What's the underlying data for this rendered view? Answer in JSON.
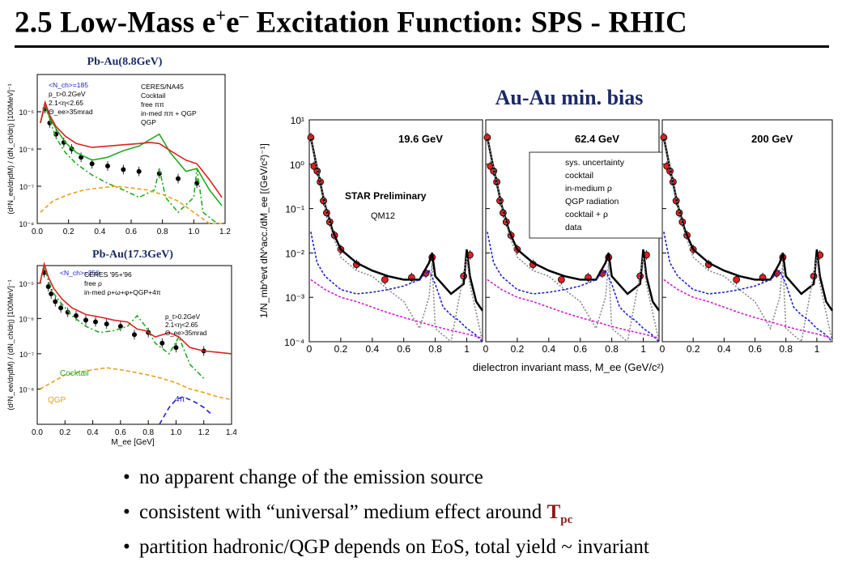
{
  "slide": {
    "title_prefix": "2.5 Low-Mass e",
    "title_sup1": "+",
    "title_mid": "e",
    "title_sup2": "–",
    "title_suffix": " Excitation Function: SPS - RHIC"
  },
  "bullets": [
    {
      "text": "no apparent change of the emission source"
    },
    {
      "text": "consistent with “universal” medium effect around ",
      "tail": "T",
      "tail_sub": "pc"
    },
    {
      "text": "partition hadronic/QGP depends on EoS, total yield ~ invariant"
    }
  ],
  "colors": {
    "title_blue": "#1a2a66",
    "tpc_red": "#8b1a1a",
    "green": "#22aa22",
    "red": "#dd2222",
    "orange": "#e8a020",
    "blue": "#2222cc",
    "magenta": "#cc22cc",
    "data_red": "#e02020"
  },
  "chart_data": [
    {
      "type": "line",
      "title": "Pb-Au(8.8GeV)",
      "xlabel": "",
      "ylabel": "(d²N_ee/dηdM) / (dN_ch/dη)  [100MeV]⁻¹",
      "xlim": [
        0.0,
        1.2
      ],
      "ylim_log10": [
        -8,
        -4
      ],
      "x_ticks": [
        "0.0",
        "0.2",
        "0.4",
        "0.6",
        "0.8",
        "1.0",
        "1.2"
      ],
      "y_ticks": [
        "10⁻⁵",
        "10⁻⁶",
        "10⁻⁷",
        "10⁻⁸"
      ],
      "annotations": [
        "<N_ch>=185",
        "p_t>0.2GeV",
        "2.1<η<2.65",
        "Θ_ee>35mrad"
      ],
      "legend": [
        "CERES/NA45",
        "Cocktail",
        "free ππ",
        "in-med ππ + QGP",
        "QGP"
      ],
      "series": [
        {
          "name": "CERES/NA45",
          "x": [
            0.05,
            0.08,
            0.12,
            0.17,
            0.22,
            0.28,
            0.35,
            0.45,
            0.55,
            0.65,
            0.78,
            0.9,
            1.02
          ],
          "y": [
            1.2e-05,
            5e-06,
            2.5e-06,
            1.5e-06,
            1e-06,
            6e-07,
            4e-07,
            3.5e-07,
            2.8e-07,
            2.5e-07,
            2.2e-07,
            1.6e-07,
            1.2e-07
          ]
        },
        {
          "name": "Cocktail",
          "x": [
            0.02,
            0.05,
            0.08,
            0.12,
            0.18,
            0.25,
            0.35,
            0.45,
            0.55,
            0.65,
            0.75,
            0.78,
            0.82,
            0.9,
            1.0,
            1.02,
            1.06,
            1.15
          ],
          "y": [
            5e-06,
            1.5e-05,
            6e-06,
            2e-06,
            8e-07,
            4e-07,
            2e-07,
            1.2e-07,
            8e-08,
            5e-08,
            8e-08,
            3e-07,
            5e-08,
            2e-08,
            5e-08,
            3e-07,
            2e-08,
            1e-08
          ]
        },
        {
          "name": "free ππ",
          "x": [
            0.02,
            0.05,
            0.08,
            0.12,
            0.18,
            0.25,
            0.35,
            0.45,
            0.55,
            0.65,
            0.72,
            0.78,
            0.85,
            0.95,
            1.02,
            1.1,
            1.18
          ],
          "y": [
            5e-06,
            1.5e-05,
            7e-06,
            3.5e-06,
            1.5e-06,
            8e-07,
            5e-07,
            6e-07,
            9e-07,
            1.2e-06,
            1.8e-06,
            2.5e-06,
            8e-07,
            2.5e-07,
            3e-07,
            8e-08,
            3e-08
          ]
        },
        {
          "name": "in-med ππ + QGP",
          "x": [
            0.02,
            0.05,
            0.08,
            0.12,
            0.18,
            0.25,
            0.35,
            0.45,
            0.55,
            0.65,
            0.72,
            0.78,
            0.85,
            0.95,
            1.02,
            1.1,
            1.18
          ],
          "y": [
            5e-06,
            1.8e-05,
            8e-06,
            4e-06,
            2.2e-06,
            1.4e-06,
            1.1e-06,
            1.2e-06,
            1.3e-06,
            1.4e-06,
            1.5e-06,
            1.4e-06,
            9e-07,
            5e-07,
            4e-07,
            1.5e-07,
            5e-08
          ]
        },
        {
          "name": "QGP",
          "x": [
            0.02,
            0.1,
            0.2,
            0.3,
            0.4,
            0.5,
            0.6,
            0.7,
            0.8,
            0.9,
            1.0,
            1.1,
            1.18
          ],
          "y": [
            2e-08,
            4e-08,
            6e-08,
            8e-08,
            9e-08,
            1e-07,
            9e-08,
            8e-08,
            6e-08,
            4e-08,
            2e-08,
            1e-08,
            1e-08
          ]
        }
      ]
    },
    {
      "type": "line",
      "title": "Pb-Au(17.3GeV)",
      "xlabel": "M_ee [GeV]",
      "ylabel": "(d²N_ee/dηdM) / (dN_ch/dη)  [100MeV]⁻¹",
      "xlim": [
        0.0,
        1.4
      ],
      "ylim_log10": [
        -9,
        -4.5
      ],
      "x_ticks": [
        "0.0",
        "0.2",
        "0.4",
        "0.6",
        "0.8",
        "1.0",
        "1.2",
        "1.4"
      ],
      "y_ticks": [
        "10⁻⁵",
        "10⁻⁶",
        "10⁻⁷",
        "10⁻⁸"
      ],
      "annotations": [
        "<N_ch>=250",
        "p_t>0.2GeV",
        "2.1<η<2.65",
        "Θ_ee>35mrad",
        "Cocktail",
        "QGP",
        "4π"
      ],
      "legend": [
        "CERES '95+'96",
        "free ρ",
        "in-med ρ+ω+φ+QGP+4π"
      ],
      "series": [
        {
          "name": "CERES '95+'96",
          "x": [
            0.05,
            0.08,
            0.1,
            0.13,
            0.17,
            0.22,
            0.28,
            0.35,
            0.42,
            0.5,
            0.6,
            0.7,
            0.8,
            0.9,
            1.0,
            1.2
          ],
          "y": [
            2e-05,
            8e-06,
            5e-06,
            3e-06,
            2e-06,
            1.5e-06,
            1.2e-06,
            9e-07,
            8e-07,
            7e-07,
            6e-07,
            3.5e-07,
            4e-07,
            2e-07,
            1.5e-07,
            1.2e-07
          ]
        },
        {
          "name": "free ρ",
          "x": [
            0.02,
            0.05,
            0.08,
            0.12,
            0.18,
            0.25,
            0.35,
            0.45,
            0.55,
            0.65,
            0.72,
            0.78,
            0.85,
            0.95,
            1.02,
            1.1,
            1.2
          ],
          "y": [
            1e-05,
            3e-05,
            1.2e-05,
            5e-06,
            2.5e-06,
            1.2e-06,
            6e-07,
            4e-07,
            4.5e-07,
            6e-07,
            1.2e-06,
            6e-07,
            2e-07,
            1e-07,
            3e-07,
            5e-08,
            2e-08
          ]
        },
        {
          "name": "in-med ρ+ω+φ+QGP+4π",
          "x": [
            0.02,
            0.05,
            0.08,
            0.12,
            0.18,
            0.25,
            0.35,
            0.45,
            0.55,
            0.65,
            0.72,
            0.78,
            0.85,
            0.95,
            1.02,
            1.1,
            1.2,
            1.3,
            1.4
          ],
          "y": [
            1e-05,
            3.5e-05,
            1.5e-05,
            7e-06,
            3.5e-06,
            2e-06,
            1.3e-06,
            1.1e-06,
            9e-07,
            8e-07,
            5e-07,
            4.5e-07,
            3e-07,
            4e-07,
            3e-07,
            1.5e-07,
            1.2e-07,
            1.1e-07,
            1e-07
          ]
        },
        {
          "name": "QGP",
          "x": [
            0.02,
            0.1,
            0.2,
            0.3,
            0.4,
            0.5,
            0.6,
            0.7,
            0.8,
            0.9,
            1.0,
            1.1,
            1.2,
            1.3,
            1.4
          ],
          "y": [
            1e-08,
            1.5e-08,
            2.5e-08,
            3e-08,
            3.5e-08,
            4e-08,
            3.5e-08,
            3e-08,
            2.5e-08,
            2e-08,
            1.5e-08,
            1e-08,
            8e-09,
            6e-09,
            5e-09
          ]
        },
        {
          "name": "4π",
          "x": [
            0.88,
            0.95,
            1.0,
            1.05,
            1.1,
            1.15,
            1.2,
            1.25
          ],
          "y": [
            1e-09,
            3e-09,
            5e-09,
            6e-09,
            5e-09,
            4e-09,
            3e-09,
            2e-09
          ]
        }
      ]
    },
    {
      "type": "line",
      "title": "Au-Au min. bias",
      "xlabel": "dielectron invariant mass, M_ee (GeV/c²)",
      "ylabel": "1/N_mb^evt dN^acc./dM_ee [(GeV/c²)⁻¹]",
      "xlim": [
        0.0,
        1.1
      ],
      "ylim_log10": [
        -4,
        1
      ],
      "x_ticks": [
        "0",
        "0.2",
        "0.4",
        "0.6",
        "0.8",
        "1"
      ],
      "y_ticks": [
        "10¹",
        "10⁰",
        "10⁻¹",
        "10⁻²",
        "10⁻³",
        "10⁻⁴"
      ],
      "panels": [
        "19.6 GeV",
        "62.4 GeV",
        "200 GeV"
      ],
      "annotations": [
        "STAR Preliminary",
        "QM12"
      ],
      "legend": [
        "sys. uncertainty",
        "cocktail",
        "in-medium ρ",
        "QGP radiation",
        "cocktail + ρ",
        "data"
      ],
      "series": [
        {
          "name": "data",
          "x": [
            0.01,
            0.03,
            0.05,
            0.07,
            0.09,
            0.11,
            0.13,
            0.16,
            0.2,
            0.3,
            0.48,
            0.65,
            0.74,
            0.78,
            0.98,
            1.02
          ],
          "y": [
            4,
            0.9,
            0.7,
            0.4,
            0.15,
            0.08,
            0.05,
            0.025,
            0.012,
            0.0055,
            0.0025,
            0.0028,
            0.0035,
            0.008,
            0.003,
            0.009
          ]
        },
        {
          "name": "cocktail + ρ",
          "x": [
            0.01,
            0.05,
            0.1,
            0.15,
            0.2,
            0.3,
            0.4,
            0.5,
            0.6,
            0.7,
            0.76,
            0.78,
            0.8,
            0.9,
            0.98,
            1.0,
            1.02,
            1.06,
            1.1
          ],
          "y": [
            4,
            0.8,
            0.12,
            0.03,
            0.012,
            0.006,
            0.004,
            0.003,
            0.0025,
            0.0025,
            0.006,
            0.01,
            0.003,
            0.0012,
            0.002,
            0.012,
            0.003,
            0.0008,
            0.0005
          ]
        },
        {
          "name": "cocktail",
          "x": [
            0.01,
            0.05,
            0.1,
            0.15,
            0.2,
            0.3,
            0.4,
            0.5,
            0.6,
            0.7,
            0.76,
            0.78,
            0.8,
            0.9,
            1.0,
            1.02,
            1.1
          ],
          "y": [
            4,
            0.8,
            0.12,
            0.025,
            0.008,
            0.004,
            0.003,
            0.0015,
            0.0008,
            0.0002,
            0.001,
            0.006,
            0.0002,
            0.0001,
            0.008,
            0.002,
            0.0001
          ]
        },
        {
          "name": "in-medium ρ",
          "x": [
            0.01,
            0.05,
            0.1,
            0.2,
            0.3,
            0.4,
            0.5,
            0.6,
            0.7,
            0.76,
            0.8,
            0.85,
            0.9,
            0.95,
            1.0,
            1.05,
            1.1
          ],
          "y": [
            0.03,
            0.006,
            0.003,
            0.0015,
            0.0012,
            0.0013,
            0.0015,
            0.0018,
            0.0025,
            0.004,
            0.002,
            0.0006,
            0.0004,
            0.0003,
            0.0002,
            0.00015,
            0.0001
          ]
        },
        {
          "name": "QGP radiation",
          "x": [
            0.01,
            0.1,
            0.2,
            0.3,
            0.4,
            0.5,
            0.6,
            0.7,
            0.8,
            0.9,
            1.0,
            1.1
          ],
          "y": [
            0.0025,
            0.0015,
            0.001,
            0.0008,
            0.0006,
            0.00045,
            0.00035,
            0.00028,
            0.00022,
            0.00018,
            0.00015,
            0.00012
          ]
        }
      ]
    }
  ]
}
